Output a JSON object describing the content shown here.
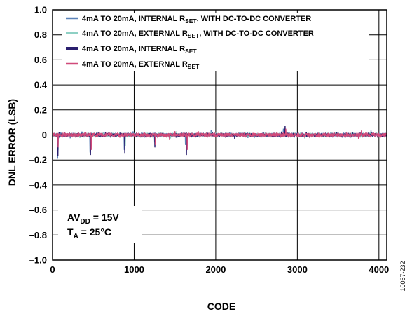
{
  "figure_id": "10067-232",
  "chart_data": {
    "type": "line",
    "xlabel": "CODE",
    "ylabel": "DNL ERROR (LSB)",
    "xlim": [
      0,
      4096
    ],
    "ylim": [
      -1.0,
      1.0
    ],
    "grid": true,
    "legend_position": "top",
    "x_ticks": [
      0,
      1000,
      2000,
      3000,
      4000
    ],
    "x_tick_labels": [
      "0",
      "1000",
      "2000",
      "3000",
      "4000"
    ],
    "y_ticks": [
      1.0,
      0.8,
      0.6,
      0.4,
      0.2,
      0,
      -0.2,
      -0.4,
      -0.6,
      -0.8,
      -1.0
    ],
    "y_tick_labels": [
      "1.0",
      "0.8",
      "0.6",
      "0.4",
      "0.2",
      "0",
      "–0.2",
      "–0.4",
      "–0.6",
      "–0.8",
      "–1.0"
    ],
    "annotation": {
      "line1_main": "AV",
      "line1_sub": "DD",
      "line1_rest": " = 15V",
      "line2_main": "T",
      "line2_sub": "A",
      "line2_rest": " = 25°C"
    },
    "series": [
      {
        "name": "4mA TO 20mA, INTERNAL RSET, WITH DC-TO-DC CONVERTER",
        "legend_pre": "4mA TO 20mA, INTERNAL R",
        "legend_sub": "SET",
        "legend_post": ", WITH DC-TO-DC CONVERTER",
        "color": "#5b82b8",
        "noise": 0.012,
        "spikes": [
          [
            64,
            -0.19
          ],
          [
            460,
            -0.14
          ],
          [
            880,
            -0.12
          ],
          [
            1250,
            -0.06
          ],
          [
            1630,
            -0.08
          ],
          [
            2830,
            0.05
          ]
        ]
      },
      {
        "name": "4mA TO 20mA, EXTERNAL RSET, WITH DC-TO-DC CONVERTER",
        "legend_pre": "4mA TO 20mA, EXTERNAL R",
        "legend_sub": "SET",
        "legend_post": ", WITH DC-TO-DC CONVERTER",
        "color": "#8ed0c4",
        "noise": 0.013,
        "spikes": [
          [
            70,
            -0.12
          ],
          [
            470,
            -0.1
          ],
          [
            890,
            -0.09
          ],
          [
            1660,
            -0.06
          ],
          [
            2840,
            0.04
          ]
        ]
      },
      {
        "name": "4mA TO 20mA, INTERNAL RSET",
        "legend_pre": "4mA TO 20mA, INTERNAL R",
        "legend_sub": "SET",
        "legend_post": "",
        "color": "#2a1f6e",
        "noise": 0.012,
        "spikes": [
          [
            66,
            -0.17
          ],
          [
            465,
            -0.16
          ],
          [
            885,
            -0.15
          ],
          [
            1255,
            -0.1
          ],
          [
            1640,
            -0.16
          ],
          [
            2850,
            0.07
          ]
        ]
      },
      {
        "name": "4mA TO 20mA, EXTERNAL RSET",
        "legend_pre": "4mA TO 20mA, EXTERNAL R",
        "legend_sub": "SET",
        "legend_post": "",
        "color": "#d04a7a",
        "noise": 0.014,
        "spikes": [
          [
            68,
            -0.1
          ],
          [
            475,
            -0.12
          ],
          [
            1260,
            -0.08
          ],
          [
            1650,
            -0.12
          ],
          [
            2860,
            0.05
          ]
        ]
      }
    ]
  }
}
